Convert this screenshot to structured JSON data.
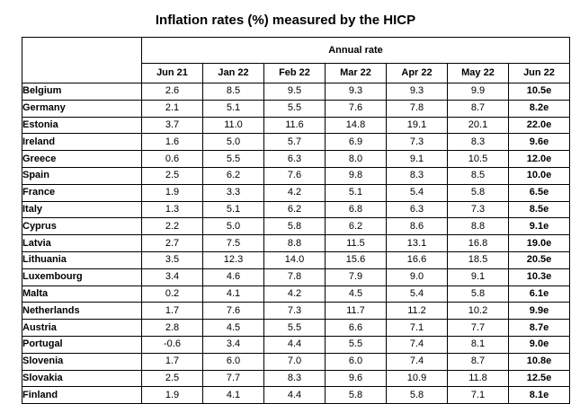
{
  "title": "Inflation rates (%) measured by the HICP",
  "group_header": "Annual rate",
  "columns": [
    "Jun 21",
    "Jan 22",
    "Feb 22",
    "Mar 22",
    "Apr 22",
    "May 22",
    "Jun 22"
  ],
  "rows": [
    {
      "country": "Belgium",
      "values": [
        "2.6",
        "8.5",
        "9.5",
        "9.3",
        "9.3",
        "9.9",
        "10.5e"
      ]
    },
    {
      "country": "Germany",
      "values": [
        "2.1",
        "5.1",
        "5.5",
        "7.6",
        "7.8",
        "8.7",
        "8.2e"
      ]
    },
    {
      "country": "Estonia",
      "values": [
        "3.7",
        "11.0",
        "11.6",
        "14.8",
        "19.1",
        "20.1",
        "22.0e"
      ]
    },
    {
      "country": "Ireland",
      "values": [
        "1.6",
        "5.0",
        "5.7",
        "6.9",
        "7.3",
        "8.3",
        "9.6e"
      ]
    },
    {
      "country": "Greece",
      "values": [
        "0.6",
        "5.5",
        "6.3",
        "8.0",
        "9.1",
        "10.5",
        "12.0e"
      ]
    },
    {
      "country": "Spain",
      "values": [
        "2.5",
        "6.2",
        "7.6",
        "9.8",
        "8.3",
        "8.5",
        "10.0e"
      ]
    },
    {
      "country": "France",
      "values": [
        "1.9",
        "3.3",
        "4.2",
        "5.1",
        "5.4",
        "5.8",
        "6.5e"
      ]
    },
    {
      "country": "Italy",
      "values": [
        "1.3",
        "5.1",
        "6.2",
        "6.8",
        "6.3",
        "7.3",
        "8.5e"
      ]
    },
    {
      "country": "Cyprus",
      "values": [
        "2.2",
        "5.0",
        "5.8",
        "6.2",
        "8.6",
        "8.8",
        "9.1e"
      ]
    },
    {
      "country": "Latvia",
      "values": [
        "2.7",
        "7.5",
        "8.8",
        "11.5",
        "13.1",
        "16.8",
        "19.0e"
      ]
    },
    {
      "country": "Lithuania",
      "values": [
        "3.5",
        "12.3",
        "14.0",
        "15.6",
        "16.6",
        "18.5",
        "20.5e"
      ]
    },
    {
      "country": "Luxembourg",
      "values": [
        "3.4",
        "4.6",
        "7.8",
        "7.9",
        "9.0",
        "9.1",
        "10.3e"
      ]
    },
    {
      "country": "Malta",
      "values": [
        "0.2",
        "4.1",
        "4.2",
        "4.5",
        "5.4",
        "5.8",
        "6.1e"
      ]
    },
    {
      "country": "Netherlands",
      "values": [
        "1.7",
        "7.6",
        "7.3",
        "11.7",
        "11.2",
        "10.2",
        "9.9e"
      ]
    },
    {
      "country": "Austria",
      "values": [
        "2.8",
        "4.5",
        "5.5",
        "6.6",
        "7.1",
        "7.7",
        "8.7e"
      ]
    },
    {
      "country": "Portugal",
      "values": [
        "-0.6",
        "3.4",
        "4.4",
        "5.5",
        "7.4",
        "8.1",
        "9.0e"
      ]
    },
    {
      "country": "Slovenia",
      "values": [
        "1.7",
        "6.0",
        "7.0",
        "6.0",
        "7.4",
        "8.7",
        "10.8e"
      ]
    },
    {
      "country": "Slovakia",
      "values": [
        "2.5",
        "7.7",
        "8.3",
        "9.6",
        "10.9",
        "11.8",
        "12.5e"
      ]
    },
    {
      "country": "Finland",
      "values": [
        "1.9",
        "4.1",
        "4.4",
        "5.8",
        "5.8",
        "7.1",
        "8.1e"
      ]
    }
  ]
}
